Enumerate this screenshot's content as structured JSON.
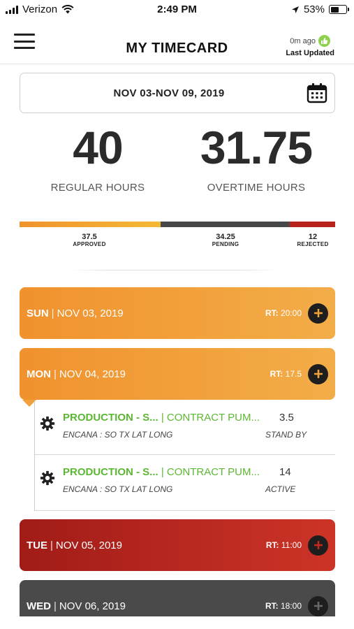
{
  "status_bar": {
    "carrier": "Verizon",
    "time": "2:49 PM",
    "battery": "53%",
    "battery_level": 0.53
  },
  "header": {
    "title": "MY TIMECARD",
    "updated_ago": "0m ago",
    "updated_label": "Last Updated"
  },
  "date_range": {
    "label": "NOV 03-NOV 09, 2019"
  },
  "summary": {
    "regular_value": "40",
    "regular_label": "REGULAR HOURS",
    "overtime_value": "31.75",
    "overtime_label": "OVERTIME HOURS"
  },
  "status_breakdown": {
    "approved_value": "37.5",
    "approved_label": "APPROVED",
    "pending_value": "34.25",
    "pending_label": "PENDING",
    "rejected_value": "12",
    "rejected_label": "REJECTED",
    "colors": {
      "approved": "#f0922e",
      "pending": "#484848",
      "rejected": "#b8231c"
    }
  },
  "days": [
    {
      "name": "SUN",
      "date": "NOV 03, 2019",
      "rt_label": "RT:",
      "rt_value": "20:00"
    },
    {
      "name": "MON",
      "date": "NOV 04, 2019",
      "rt_label": "RT:",
      "rt_value": "17.5"
    },
    {
      "name": "TUE",
      "date": "NOV 05, 2019",
      "rt_label": "RT:",
      "rt_value": "11:00"
    },
    {
      "name": "WED",
      "date": "NOV 06, 2019",
      "rt_label": "RT:",
      "rt_value": "18:00"
    }
  ],
  "entries": [
    {
      "job": "PRODUCTION - S...",
      "separator": "|",
      "customer": "CONTRACT PUM...",
      "hours": "3.5",
      "location": "ENCANA : SO TX LAT LONG",
      "status": "STAND BY"
    },
    {
      "job": "PRODUCTION - S...",
      "separator": "|",
      "customer": "CONTRACT PUM...",
      "hours": "14",
      "location": "ENCANA : SO TX LAT LONG",
      "status": "ACTIVE"
    }
  ],
  "icons": {
    "menu": "hamburger-menu-icon",
    "calendar": "calendar-icon",
    "add": "plus-icon",
    "gear": "gear-icon",
    "updated": "thumbs-up-icon"
  }
}
